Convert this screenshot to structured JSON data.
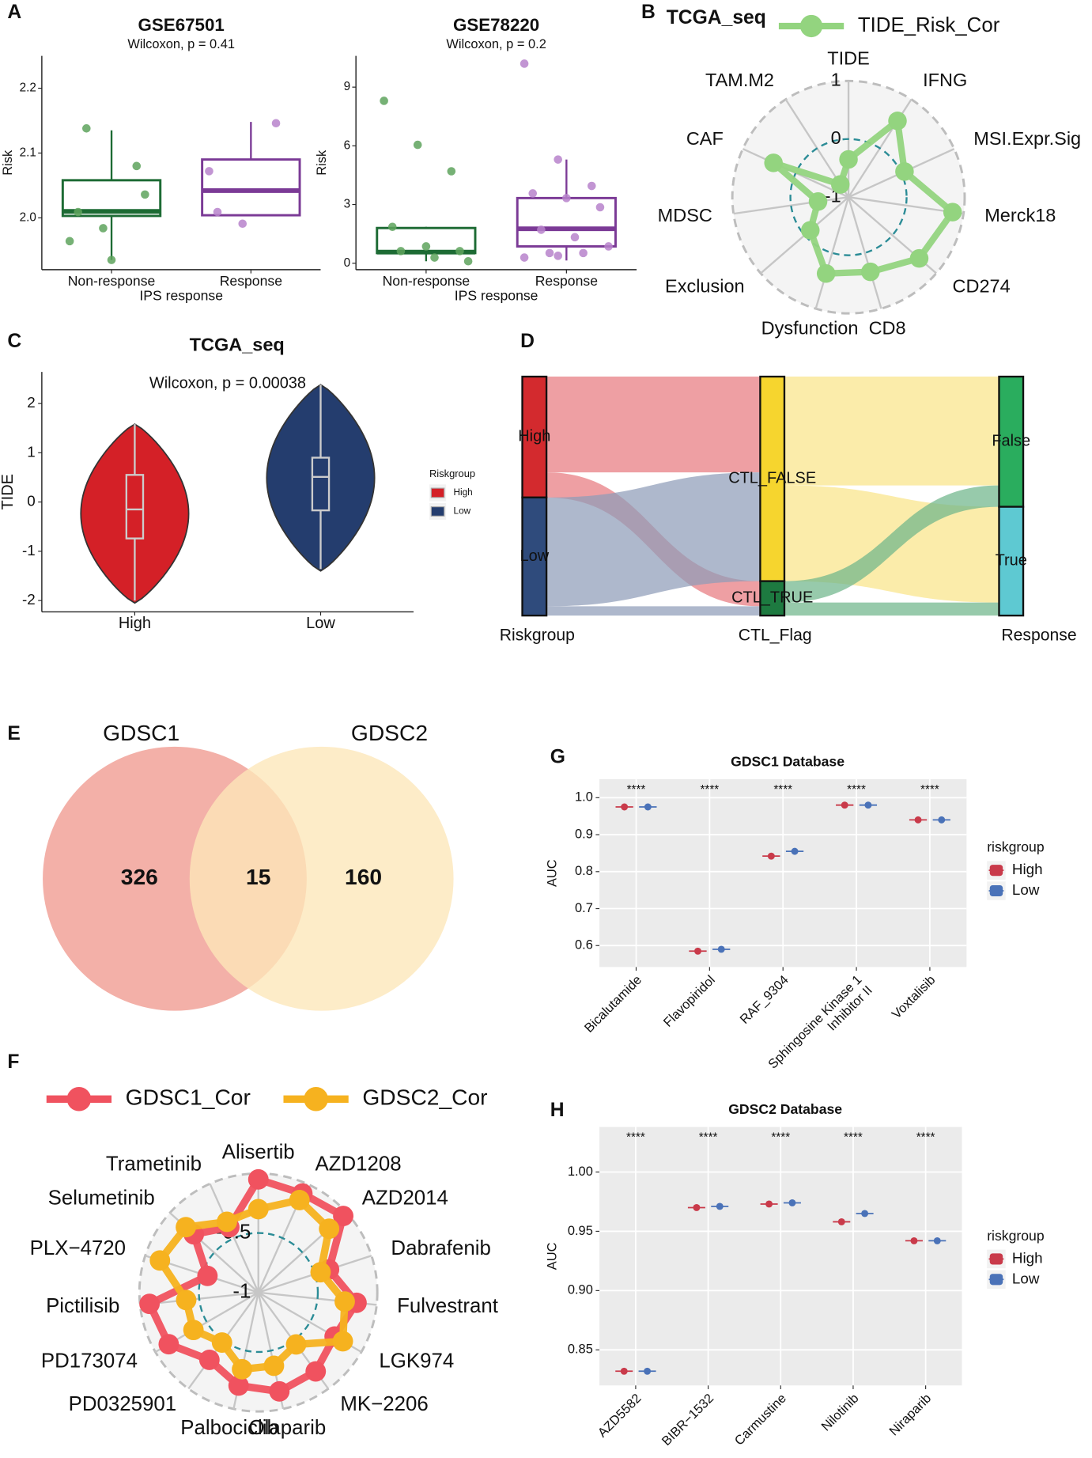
{
  "panel_labels": [
    "A",
    "B",
    "C",
    "D",
    "E",
    "F",
    "G",
    "H"
  ],
  "chart_data": [
    {
      "type": "box",
      "title": "GSE67501",
      "subtitle": "Wilcoxon, p = 0.41",
      "y_label": "Risk",
      "x_label": "IPS response",
      "categories": [
        "Non-response",
        "Response"
      ],
      "colors": [
        "#1d6b34",
        "#7b3a96"
      ],
      "point_colors": [
        "#5ea35d",
        "#b783cb"
      ],
      "boxes": [
        {
          "whisker_low": 1.935,
          "q1": 2.003,
          "median": 2.01,
          "q3": 2.058,
          "whisker_high": 2.135
        },
        {
          "whisker_low": 2.004,
          "q1": 2.004,
          "median": 2.042,
          "q3": 2.09,
          "whisker_high": 2.148
        }
      ],
      "points": [
        [
          1.964,
          1.984,
          2.08,
          2.009,
          1.935,
          2.036,
          2.138
        ],
        [
          2.072,
          1.991,
          2.146,
          2.009
        ]
      ],
      "ylim": [
        1.92,
        2.25
      ],
      "yticks": [
        {
          "value": 2,
          "label": "2.0"
        },
        2.1,
        2.2
      ]
    },
    {
      "type": "box",
      "title": "GSE78220",
      "subtitle": "Wilcoxon, p = 0.2",
      "y_label": "Risk",
      "x_label": "IPS response",
      "categories": [
        "Non-response",
        "Response"
      ],
      "colors": [
        "#1d6b34",
        "#7b3a96"
      ],
      "point_colors": [
        "#5ea35d",
        "#b783cb"
      ],
      "boxes": [
        {
          "whisker_low": 0.1,
          "q1": 0.52,
          "median": 0.57,
          "q3": 1.8,
          "whisker_high": 1.86
        },
        {
          "whisker_low": 0.14,
          "q1": 0.86,
          "median": 1.76,
          "q3": 3.33,
          "whisker_high": 5.3
        }
      ],
      "points": [
        [
          8.3,
          6.05,
          4.7,
          1.86,
          0.86,
          0.62,
          0.62,
          0.29,
          0.1
        ],
        [
          10.2,
          5.3,
          3.95,
          3.57,
          3.33,
          2.86,
          1.71,
          1.33,
          0.86,
          0.52,
          0.52,
          0.29,
          0.38
        ]
      ],
      "ylim": [
        -0.33,
        10.6
      ],
      "yticks": [
        0,
        3,
        6,
        9
      ]
    },
    {
      "type": "radar",
      "title": "TCGA_seq",
      "categories": [
        "TIDE",
        "IFNG",
        "MSI.Expr.Sig",
        "Merck18",
        "CD274",
        "CD8",
        "Dysfunction",
        "Exclusion",
        "MDSC",
        "CAF",
        "TAM.M2"
      ],
      "series": [
        {
          "name": "TIDE_Risk_Cor",
          "color": "#93d47f",
          "values": [
            -0.35,
            0.56,
            0.06,
            0.81,
            0.61,
            0.34,
            0.37,
            -0.13,
            -0.47,
            0.42,
            -0.74
          ]
        }
      ],
      "rlim": [
        -1,
        1
      ],
      "rticks": [
        -1,
        0,
        1
      ]
    },
    {
      "type": "violin",
      "title": "TCGA_seq",
      "subtitle": "Wilcoxon, p = 0.00038",
      "y_label": "TIDE",
      "legend_title": "Riskgroup",
      "categories": [
        "High",
        "Low"
      ],
      "colors": [
        "#d42027",
        "#243d6e"
      ],
      "violins": [
        {
          "min": -2.05,
          "max": 1.58,
          "whisker_low": -2.0,
          "q1": -0.74,
          "median": -0.15,
          "q3": 0.55,
          "whisker_high": 1.58
        },
        {
          "min": -1.4,
          "max": 2.38,
          "whisker_low": -1.36,
          "q1": -0.17,
          "median": 0.51,
          "q3": 0.9,
          "whisker_high": 2.38
        }
      ],
      "ylim": [
        -2.23,
        2.64
      ],
      "yticks": [
        -2,
        -1,
        0,
        1,
        2
      ]
    },
    {
      "type": "sankey",
      "axes": [
        "Riskgroup",
        "CTL_Flag",
        "Response"
      ],
      "nodes": [
        {
          "name": "High",
          "stage": 0,
          "color": "#d32a2e",
          "link_color": "#e77a80"
        },
        {
          "name": "Low",
          "stage": 0,
          "color": "#2f4b7c",
          "link_color": "#8f9cb8"
        },
        {
          "name": "CTL_FALSE",
          "stage": 1,
          "color": "#f6d52e",
          "link_color": "#f9e589"
        },
        {
          "name": "CTL_TRUE",
          "stage": 1,
          "color": "#1d7a40",
          "link_color": "#6fb58a"
        },
        {
          "name": "False",
          "stage": 2,
          "color": "#2aad5e",
          "link_color": "#2aad5e"
        },
        {
          "name": "True",
          "stage": 2,
          "color": "#5ec9d2",
          "link_color": "#5ec9d2"
        }
      ],
      "links": [
        {
          "source": 0,
          "target": 2,
          "value": 103
        },
        {
          "source": 0,
          "target": 3,
          "value": 27
        },
        {
          "source": 1,
          "target": 2,
          "value": 117
        },
        {
          "source": 1,
          "target": 3,
          "value": 10
        },
        {
          "source": 2,
          "target": 4,
          "value": 117
        },
        {
          "source": 2,
          "target": 5,
          "value": 103
        },
        {
          "source": 3,
          "target": 4,
          "value": 23
        },
        {
          "source": 3,
          "target": 5,
          "value": 14
        }
      ]
    },
    {
      "type": "venn",
      "sets": [
        "GDSC1",
        "GDSC2"
      ],
      "colors": [
        "#f09a90",
        "#fde7b9"
      ],
      "label_colors": [
        "#e8554b",
        "#f8d690"
      ],
      "values": [
        326,
        15,
        160
      ]
    },
    {
      "type": "radar",
      "categories": [
        "Alisertib",
        "AZD1208",
        "AZD2014",
        "Dabrafenib",
        "Fulvestrant",
        "LGK974",
        "MK−2206",
        "Olaparib",
        "Palbociclib",
        "PD0325901",
        "PD173074",
        "Pictilisib",
        "PLX−4720",
        "Selumetinib",
        "Trametinib"
      ],
      "series": [
        {
          "name": "GDSC1_Cor",
          "color": "#f0525f",
          "values": [
            -0.05,
            -0.09,
            -0.04,
            -0.375,
            -0.17,
            -0.26,
            -0.18,
            -0.15,
            -0.2,
            -0.3,
            -0.13,
            -0.08,
            -0.55,
            -0.27,
            -0.4
          ]
        },
        {
          "name": "GDSC2_Cor",
          "color": "#f6b21f",
          "values": [
            -0.3,
            -0.15,
            -0.2,
            -0.45,
            -0.27,
            -0.18,
            -0.46,
            -0.37,
            -0.34,
            -0.48,
            -0.37,
            -0.39,
            -0.13,
            -0.18,
            -0.35
          ]
        }
      ],
      "rlim": [
        -1,
        0
      ],
      "rticks": [
        -1,
        -0.5
      ]
    },
    {
      "type": "dot",
      "title": "GDSC1 Database",
      "y_label": "AUC",
      "legend_title": "riskgroup",
      "categories": [
        "Bicalutamide",
        "Flavopiridol",
        "RAF_9304",
        "Sphingosine Kinase 1\nInhibitor II",
        "Voxtalisib"
      ],
      "annotations": [
        "****",
        "****",
        "****",
        "****",
        "****"
      ],
      "series": [
        {
          "name": "High",
          "color": "#c93a4a",
          "values": [
            0.975,
            0.585,
            0.842,
            0.98,
            0.94
          ]
        },
        {
          "name": "Low",
          "color": "#4a72b8",
          "values": [
            0.975,
            0.59,
            0.855,
            0.98,
            0.94
          ]
        }
      ],
      "ylim": [
        0.542,
        1.05
      ],
      "yticks": [
        0.6,
        0.7,
        0.8,
        0.9,
        {
          "value": 1,
          "label": "1.0"
        }
      ]
    },
    {
      "type": "dot",
      "title": "GDSC2 Database",
      "y_label": "AUC",
      "legend_title": "riskgroup",
      "categories": [
        "AZD5582",
        "BIBR−1532",
        "Carmustine",
        "Nilotinib",
        "Niraparib"
      ],
      "annotations": [
        "****",
        "****",
        "****",
        "****",
        "****"
      ],
      "series": [
        {
          "name": "High",
          "color": "#c93a4a",
          "values": [
            0.832,
            0.97,
            0.973,
            0.958,
            0.942
          ]
        },
        {
          "name": "Low",
          "color": "#4a72b8",
          "values": [
            0.832,
            0.971,
            0.974,
            0.965,
            0.942
          ]
        }
      ],
      "ylim": [
        0.82,
        1.038
      ],
      "yticks": [
        0.85,
        {
          "value": 0.9,
          "label": "0.90"
        },
        0.95,
        {
          "value": 1,
          "label": "1.00"
        }
      ]
    }
  ]
}
